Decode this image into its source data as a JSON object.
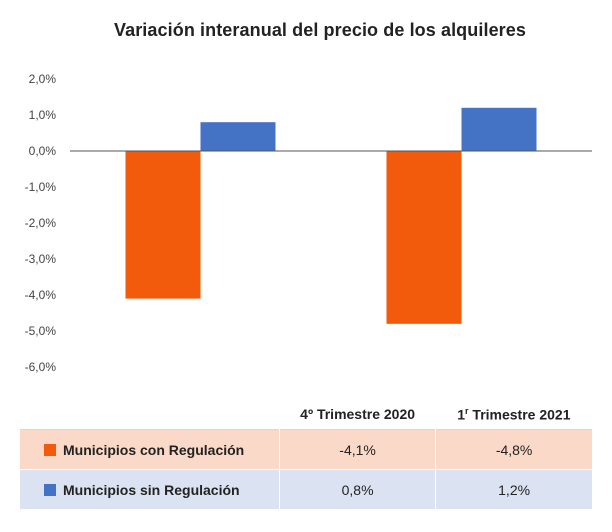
{
  "chart_data": {
    "type": "bar",
    "title": "Variación interanual del precio de los alquileres",
    "categories": [
      "4º Trimestre 2020",
      "1r Trimestre 2021"
    ],
    "category_labels": [
      {
        "main": "4º Trimestre 2020",
        "sup": ""
      },
      {
        "main": "1",
        "sup": "r",
        "rest": " Trimestre 2021"
      }
    ],
    "series": [
      {
        "name": "Municipios con Regulación",
        "color": "#f25a0c",
        "values": [
          -4.1,
          -4.8
        ],
        "labels": [
          "-4,1%",
          "-4,8%"
        ]
      },
      {
        "name": "Municipios sin Regulación",
        "color": "#4472c4",
        "values": [
          0.8,
          1.2
        ],
        "labels": [
          "0,8%",
          "1,2%"
        ]
      }
    ],
    "ylim": [
      -6.0,
      2.0
    ],
    "yticks": [
      2.0,
      1.0,
      0.0,
      -1.0,
      -2.0,
      -3.0,
      -4.0,
      -5.0,
      -6.0
    ],
    "ytick_labels": [
      "2,0%",
      "1,0%",
      "0,0%",
      "-1,0%",
      "-2,0%",
      "-3,0%",
      "-4,0%",
      "-5,0%",
      "-6,0%"
    ],
    "grid": false,
    "legend": "data table below chart"
  }
}
